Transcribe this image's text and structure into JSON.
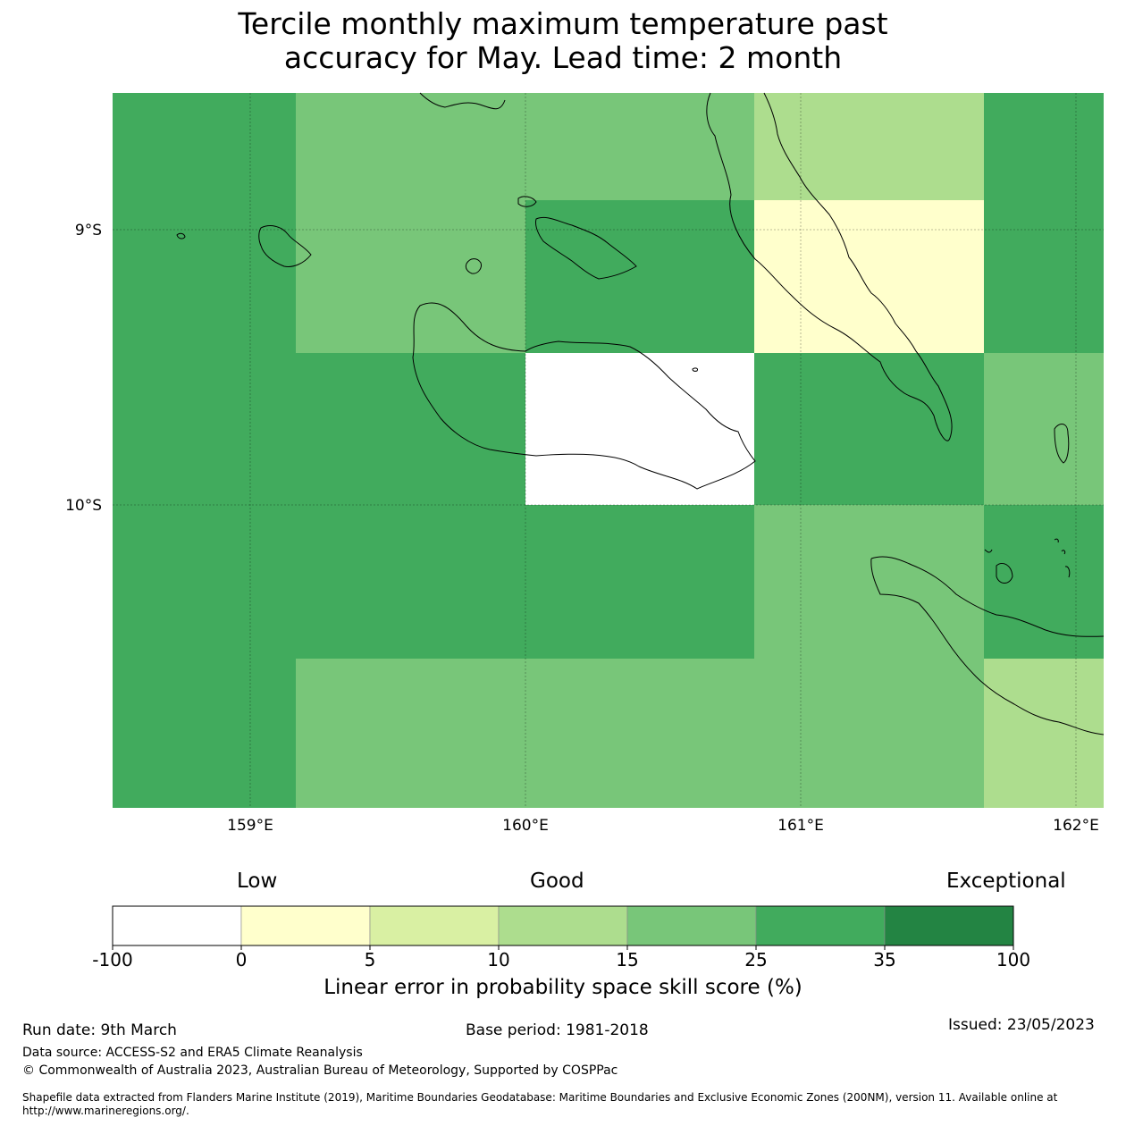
{
  "title": {
    "line1": "Tercile monthly maximum temperature past",
    "line2": "accuracy for May. Lead time: 2 month"
  },
  "map": {
    "lat_labels": [
      "9°S",
      "10°S"
    ],
    "lon_labels": [
      "159°E",
      "160°E",
      "161°E",
      "162°E"
    ],
    "grid": [
      [
        "25",
        "15",
        "15",
        "10",
        "25"
      ],
      [
        "25",
        "15",
        "25",
        "0",
        "25"
      ],
      [
        "25",
        "25",
        "-100",
        "25",
        "15"
      ],
      [
        "25",
        "25",
        "25",
        "15",
        "25"
      ],
      [
        "25",
        "15",
        "15",
        "15",
        "10"
      ]
    ]
  },
  "colorbar": {
    "categories": [
      "Low",
      "Good",
      "Exceptional"
    ],
    "ticks": [
      "-100",
      "0",
      "5",
      "10",
      "15",
      "25",
      "35",
      "100"
    ],
    "colors": [
      "#ffffff",
      "#ffffcc",
      "#d9f0a3",
      "#addd8e",
      "#78c679",
      "#41ab5d",
      "#238443"
    ],
    "label": "Linear error in probability space skill score (%)"
  },
  "footer": {
    "run_date": "Run date: 9th March",
    "base_period": "Base period: 1981-2018",
    "issued": "Issued: 23/05/2023",
    "data_source": "Data source: ACCESS-S2 and ERA5 Climate Reanalysis",
    "copyright": "© Commonwealth of Australia 2023, Australian Bureau of Meteorology, Supported by COSPPac",
    "shapefile": "Shapefile data extracted from Flanders Marine Institute (2019), Maritime Boundaries Geodatabase: Maritime Boundaries and Exclusive Economic Zones (200NM), version 11. Available online at http://www.marineregions.org/."
  }
}
